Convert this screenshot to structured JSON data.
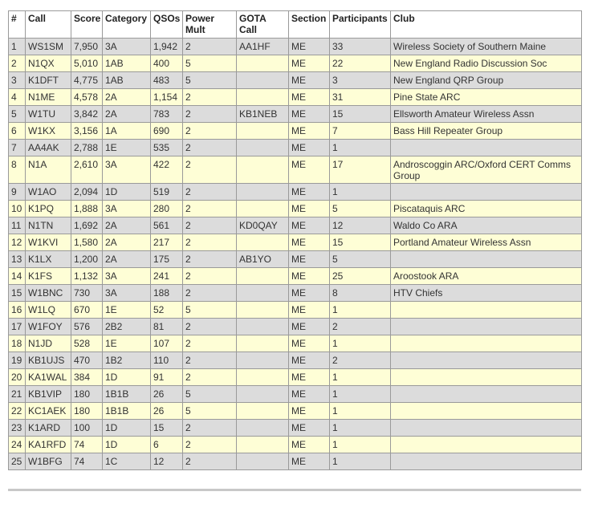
{
  "table": {
    "headers": [
      "#",
      "Call",
      "Score",
      "Category",
      "QSOs",
      "Power Mult",
      "GOTA Call",
      "Section",
      "Participants",
      "Club"
    ],
    "rows": [
      [
        "1",
        "WS1SM",
        "7,950",
        "3A",
        "1,942",
        "2",
        "AA1HF",
        "ME",
        "33",
        "Wireless Society of Southern Maine"
      ],
      [
        "2",
        "N1QX",
        "5,010",
        "1AB",
        "400",
        "5",
        "",
        "ME",
        "22",
        "New England Radio Discussion Soc"
      ],
      [
        "3",
        "K1DFT",
        "4,775",
        "1AB",
        "483",
        "5",
        "",
        "ME",
        "3",
        "New England QRP Group"
      ],
      [
        "4",
        "N1ME",
        "4,578",
        "2A",
        "1,154",
        "2",
        "",
        "ME",
        "31",
        "Pine State ARC"
      ],
      [
        "5",
        "W1TU",
        "3,842",
        "2A",
        "783",
        "2",
        "KB1NEB",
        "ME",
        "15",
        "Ellsworth Amateur Wireless Assn"
      ],
      [
        "6",
        "W1KX",
        "3,156",
        "1A",
        "690",
        "2",
        "",
        "ME",
        "7",
        "Bass Hill Repeater Group"
      ],
      [
        "7",
        "AA4AK",
        "2,788",
        "1E",
        "535",
        "2",
        "",
        "ME",
        "1",
        ""
      ],
      [
        "8",
        "N1A",
        "2,610",
        "3A",
        "422",
        "2",
        "",
        "ME",
        "17",
        "Androscoggin ARC/Oxford CERT Comms Group"
      ],
      [
        "9",
        "W1AO",
        "2,094",
        "1D",
        "519",
        "2",
        "",
        "ME",
        "1",
        ""
      ],
      [
        "10",
        "K1PQ",
        "1,888",
        "3A",
        "280",
        "2",
        "",
        "ME",
        "5",
        "Piscataquis ARC"
      ],
      [
        "11",
        "N1TN",
        "1,692",
        "2A",
        "561",
        "2",
        "KD0QAY",
        "ME",
        "12",
        "Waldo Co ARA"
      ],
      [
        "12",
        "W1KVI",
        "1,580",
        "2A",
        "217",
        "2",
        "",
        "ME",
        "15",
        "Portland Amateur Wireless Assn"
      ],
      [
        "13",
        "K1LX",
        "1,200",
        "2A",
        "175",
        "2",
        "AB1YO",
        "ME",
        "5",
        ""
      ],
      [
        "14",
        "K1FS",
        "1,132",
        "3A",
        "241",
        "2",
        "",
        "ME",
        "25",
        "Aroostook ARA"
      ],
      [
        "15",
        "W1BNC",
        "730",
        "3A",
        "188",
        "2",
        "",
        "ME",
        "8",
        "HTV Chiefs"
      ],
      [
        "16",
        "W1LQ",
        "670",
        "1E",
        "52",
        "5",
        "",
        "ME",
        "1",
        ""
      ],
      [
        "17",
        "W1FOY",
        "576",
        "2B2",
        "81",
        "2",
        "",
        "ME",
        "2",
        ""
      ],
      [
        "18",
        "N1JD",
        "528",
        "1E",
        "107",
        "2",
        "",
        "ME",
        "1",
        ""
      ],
      [
        "19",
        "KB1UJS",
        "470",
        "1B2",
        "110",
        "2",
        "",
        "ME",
        "2",
        ""
      ],
      [
        "20",
        "KA1WAL",
        "384",
        "1D",
        "91",
        "2",
        "",
        "ME",
        "1",
        ""
      ],
      [
        "21",
        "KB1VIP",
        "180",
        "1B1B",
        "26",
        "5",
        "",
        "ME",
        "1",
        ""
      ],
      [
        "22",
        "KC1AEK",
        "180",
        "1B1B",
        "26",
        "5",
        "",
        "ME",
        "1",
        ""
      ],
      [
        "23",
        "K1ARD",
        "100",
        "1D",
        "15",
        "2",
        "",
        "ME",
        "1",
        ""
      ],
      [
        "24",
        "KA1RFD",
        "74",
        "1D",
        "6",
        "2",
        "",
        "ME",
        "1",
        ""
      ],
      [
        "25",
        "W1BFG",
        "74",
        "1C",
        "12",
        "2",
        "",
        "ME",
        "1",
        ""
      ]
    ]
  },
  "colors": {
    "odd_row": "#dcdcdc",
    "even_row": "#fefed6",
    "border": "#9a9a9a",
    "text": "#333333"
  }
}
